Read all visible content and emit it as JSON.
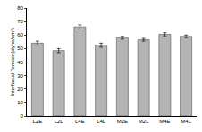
{
  "chart_data": {
    "type": "bar",
    "y_label": "Interfacial Tension(dyne/cm²)",
    "categories": [
      "L2E",
      "L2L",
      "L4E",
      "L4L",
      "M2E",
      "M2L",
      "M4E",
      "M4L"
    ],
    "values": [
      54,
      48.5,
      66,
      52.5,
      58,
      56.5,
      60.5,
      59
    ],
    "errors": [
      1.5,
      1.5,
      1.5,
      1.5,
      1,
      1,
      1.2,
      1
    ],
    "color": "#b4b4b4",
    "ylim": [
      0,
      80
    ],
    "yticks": [
      0,
      10,
      20,
      30,
      40,
      50,
      60,
      70,
      80
    ],
    "grid": false
  }
}
